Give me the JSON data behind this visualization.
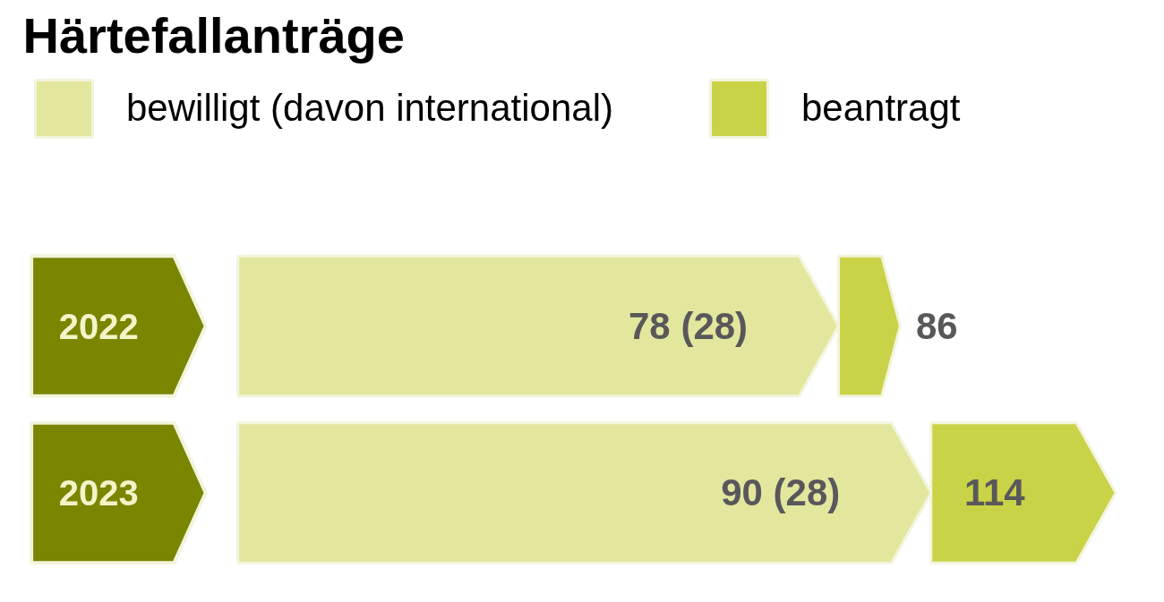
{
  "chart_data": {
    "type": "bar",
    "title": "Härtefallanträge",
    "orientation": "horizontal",
    "categories": [
      "2022",
      "2023"
    ],
    "series": [
      {
        "name": "bewilligt (davon international)",
        "color": "#e3e79e",
        "values": [
          78,
          90
        ],
        "value_labels": [
          "78 (28)",
          "90 (28)"
        ]
      },
      {
        "name": "beantragt",
        "color": "#c9d348",
        "values": [
          8,
          24
        ]
      }
    ],
    "stacked": true,
    "totals": [
      "86",
      "114"
    ],
    "legend": "top",
    "grid": false,
    "tick_labels": false
  }
}
